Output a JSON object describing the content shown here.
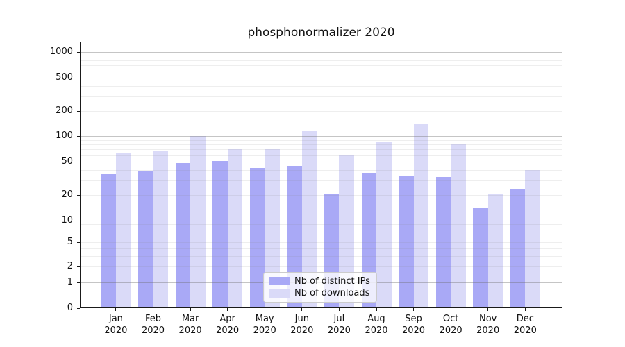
{
  "figure": {
    "background": "#ffffff"
  },
  "chart_data": {
    "type": "bar",
    "title": "phosphonormalizer 2020",
    "xlabel": "",
    "ylabel": "",
    "yscale": "symlog",
    "yticks": [
      1000,
      500,
      200,
      100,
      50,
      20,
      10,
      5,
      2,
      1,
      0
    ],
    "ylim": [
      0,
      1300
    ],
    "grid": "on",
    "categories": [
      "Jan",
      "Feb",
      "Mar",
      "Apr",
      "May",
      "Jun",
      "Jul",
      "Aug",
      "Sep",
      "Oct",
      "Nov",
      "Dec"
    ],
    "year_label": "2020",
    "series": [
      {
        "name": "Nb of distinct IPs",
        "color": "#a9a9f6",
        "values": [
          36,
          39,
          48,
          51,
          42,
          45,
          21,
          37,
          34,
          33,
          14,
          24
        ]
      },
      {
        "name": "Nb of downloads",
        "color": "#dadaf8",
        "values": [
          63,
          68,
          100,
          70,
          70,
          114,
          60,
          86,
          139,
          80,
          21,
          40
        ]
      }
    ],
    "legend_position": "lower center"
  }
}
